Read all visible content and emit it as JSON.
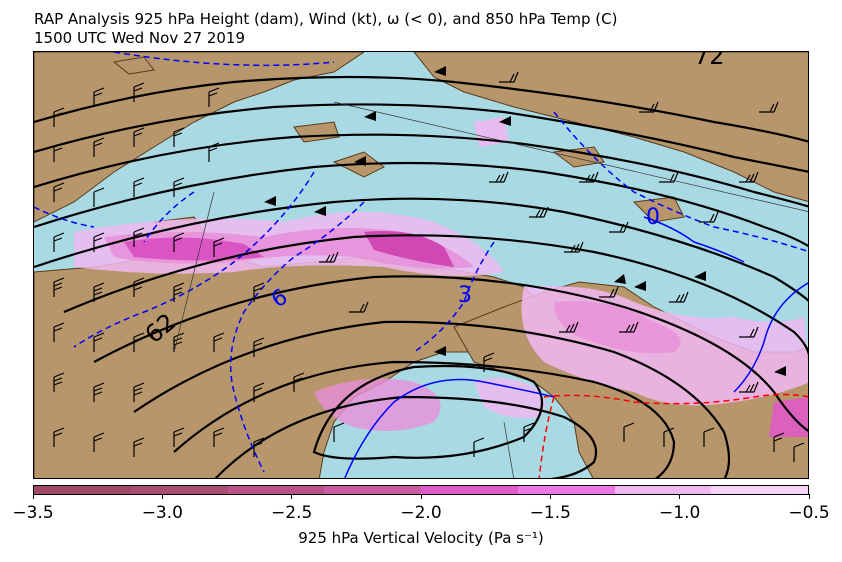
{
  "title_line1": "RAP Analysis 925 hPa Height (dam), Wind (kt),  ω (< 0), and 850 hPa Temp (C)",
  "title_line2": "1500 UTC Wed Nov 27 2019",
  "colors": {
    "land": "#b8966b",
    "water": "#a9dae3",
    "coast": "#5a3a1a",
    "height_contour": "#000000",
    "temp_contour": "#0000ff",
    "temp_negative": "#ff0000"
  },
  "colorbar": {
    "label": "925 hPa Vertical Velocity (Pa s⁻¹)",
    "ticks": [
      "−3.5",
      "−3.0",
      "−2.5",
      "−2.0",
      "−1.5",
      "−1.0",
      "−0.5"
    ],
    "bins": [
      "#9e4a66",
      "#a94d74",
      "#b9518a",
      "#c85aa3",
      "#e05ac8",
      "#eb78e4",
      "#f0b8f2",
      "#f6d4f7"
    ]
  },
  "contour_labels": {
    "height_top": "72",
    "height_left": "62",
    "temp_zero": "0",
    "temp_three": "3",
    "temp_six": "6"
  }
}
